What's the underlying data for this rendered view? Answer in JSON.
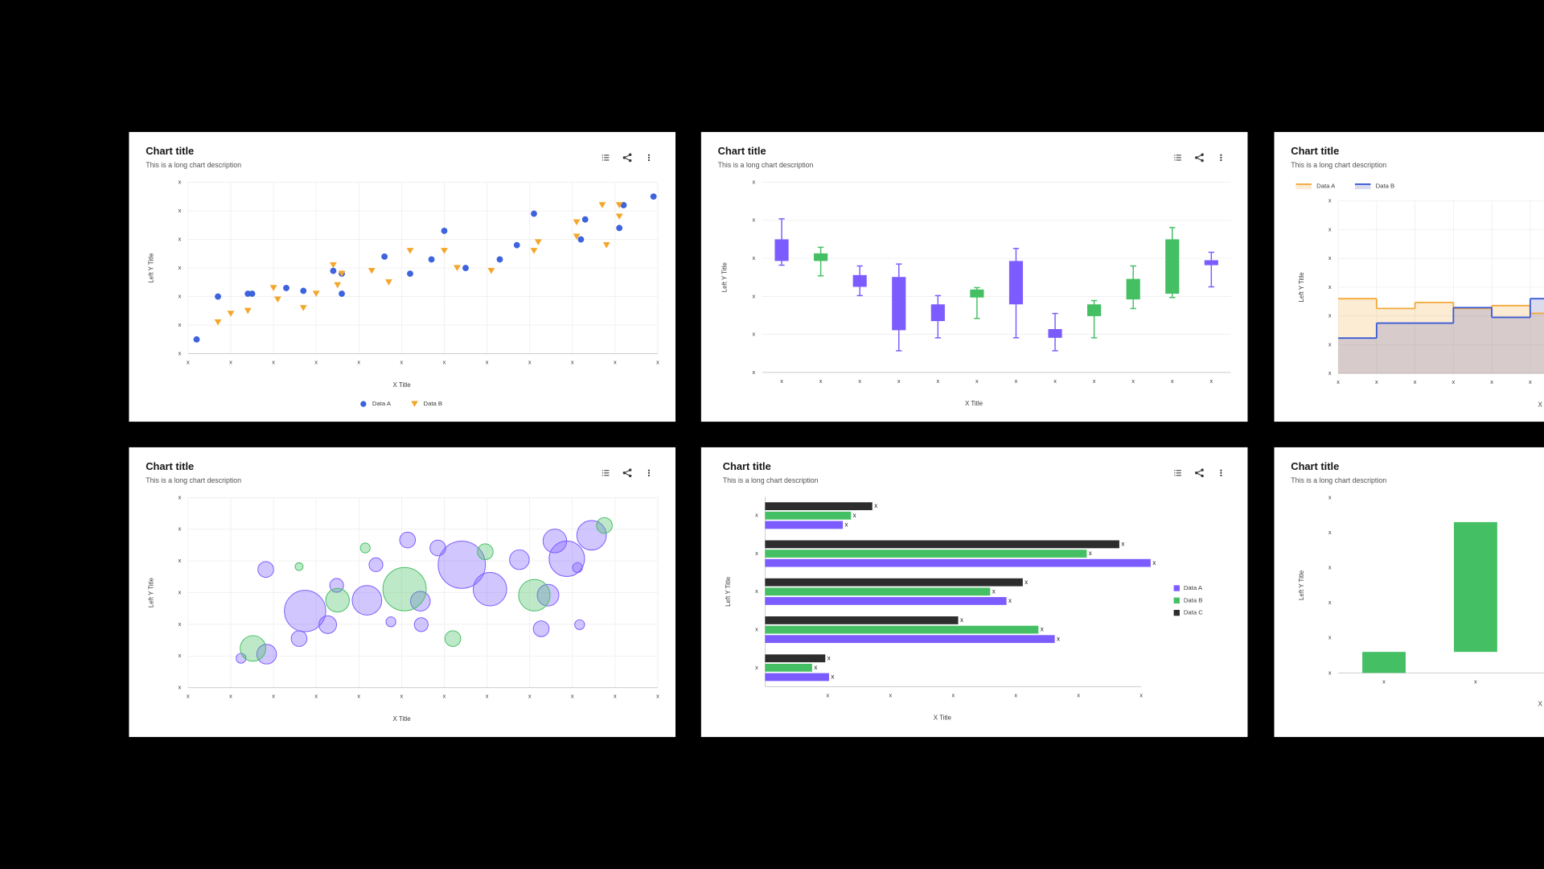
{
  "chart_data": [
    {
      "type": "scatter",
      "title": "Chart title",
      "subtitle": "This is a long chart description",
      "x_title": "X Title",
      "y_title": "Left Y Title",
      "xlim": [
        0,
        11
      ],
      "ylim": [
        0,
        6
      ],
      "xticks": [
        {
          "value": 0,
          "label": "x"
        },
        {
          "value": 1,
          "label": "x"
        },
        {
          "value": 2,
          "label": "x"
        },
        {
          "value": 3,
          "label": "x"
        },
        {
          "value": 4,
          "label": "x"
        },
        {
          "value": 5,
          "label": "x"
        },
        {
          "value": 6,
          "label": "x"
        },
        {
          "value": 7,
          "label": "x"
        },
        {
          "value": 8,
          "label": "x"
        },
        {
          "value": 9,
          "label": "x"
        },
        {
          "value": 10,
          "label": "x"
        },
        {
          "value": 11,
          "label": "x"
        }
      ],
      "yticks": [
        {
          "value": 0,
          "label": "x"
        },
        {
          "value": 1,
          "label": "x"
        },
        {
          "value": 2,
          "label": "x"
        },
        {
          "value": 3,
          "label": "x"
        },
        {
          "value": 4,
          "label": "x"
        },
        {
          "value": 5,
          "label": "x"
        },
        {
          "value": 6,
          "label": "x"
        }
      ],
      "grid": true,
      "legend": "bottom",
      "series": [
        {
          "name": "Data A",
          "color": "#3d63dd",
          "marker": "circle",
          "x": [
            0.2,
            0.7,
            1.4,
            1.5,
            2.3,
            2.7,
            3.4,
            3.6,
            3.6,
            4.6,
            5.2,
            5.7,
            6.0,
            6.5,
            7.3,
            7.7,
            8.1,
            9.2,
            9.3,
            10.1,
            10.2,
            10.9
          ],
          "values": [
            0.5,
            2.0,
            2.1,
            2.1,
            2.3,
            2.2,
            2.9,
            2.8,
            2.1,
            3.4,
            2.8,
            3.3,
            4.3,
            3.0,
            3.3,
            3.8,
            4.9,
            4.0,
            4.7,
            4.4,
            5.2,
            5.5
          ]
        },
        {
          "name": "Data B",
          "color": "#f4a62a",
          "marker": "triangle-down",
          "x": [
            0.7,
            1.0,
            1.4,
            2.0,
            2.1,
            2.7,
            3.0,
            3.4,
            3.5,
            3.6,
            4.3,
            4.7,
            5.2,
            6.0,
            6.3,
            7.1,
            8.1,
            8.2,
            9.1,
            9.1,
            9.7,
            9.8,
            10.1,
            10.1
          ],
          "values": [
            1.1,
            1.4,
            1.5,
            2.3,
            1.9,
            1.6,
            2.1,
            3.1,
            2.4,
            2.8,
            2.9,
            2.5,
            3.6,
            3.6,
            3.0,
            2.9,
            3.6,
            3.9,
            4.1,
            4.6,
            5.2,
            3.8,
            4.8,
            5.2
          ]
        }
      ]
    },
    {
      "type": "box",
      "title": "Chart title",
      "subtitle": "This is a long chart description",
      "x_title": "X Title",
      "y_title": "Left Y Title",
      "categories": [
        "x",
        "x",
        "x",
        "x",
        "x",
        "x",
        "x",
        "x",
        "x",
        "x",
        "x",
        "x"
      ],
      "ylim": [
        0,
        5
      ],
      "yticks": [
        {
          "value": 0,
          "label": "x"
        },
        {
          "value": 1,
          "label": "x"
        },
        {
          "value": 2,
          "label": "x"
        },
        {
          "value": 3,
          "label": "x"
        },
        {
          "value": 4,
          "label": "x"
        },
        {
          "value": 5,
          "label": "x"
        }
      ],
      "grid": true,
      "low": [
        2.82,
        2.54,
        2.02,
        0.57,
        0.91,
        1.42,
        0.91,
        0.57,
        0.91,
        1.68,
        1.97,
        2.25
      ],
      "q1": [
        2.93,
        2.93,
        2.25,
        1.11,
        1.35,
        1.97,
        1.79,
        0.91,
        1.48,
        1.92,
        2.07,
        2.82
      ],
      "q3": [
        3.5,
        3.13,
        2.56,
        2.51,
        1.79,
        2.18,
        2.93,
        1.14,
        1.79,
        2.46,
        3.5,
        2.95
      ],
      "high": [
        4.04,
        3.29,
        2.8,
        2.85,
        2.02,
        2.23,
        3.26,
        1.55,
        1.89,
        2.8,
        3.81,
        3.16
      ],
      "colors": [
        "#7d5cff",
        "#45bf63",
        "#7d5cff",
        "#7d5cff",
        "#7d5cff",
        "#45bf63",
        "#7d5cff",
        "#7d5cff",
        "#45bf63",
        "#45bf63",
        "#45bf63",
        "#7d5cff"
      ]
    },
    {
      "type": "step",
      "title": "Chart title",
      "subtitle": "This is a long chart description",
      "x_title": "X Title",
      "y_title": "Left Y Title",
      "xlim": [
        0,
        11
      ],
      "ylim": [
        0,
        6
      ],
      "xticks": [
        {
          "value": 0,
          "label": "x"
        },
        {
          "value": 1,
          "label": "x"
        },
        {
          "value": 2,
          "label": "x"
        },
        {
          "value": 3,
          "label": "x"
        },
        {
          "value": 4,
          "label": "x"
        },
        {
          "value": 5,
          "label": "x"
        }
      ],
      "yticks": [
        {
          "value": 0,
          "label": "x"
        },
        {
          "value": 1,
          "label": "x"
        },
        {
          "value": 2,
          "label": "x"
        },
        {
          "value": 3,
          "label": "x"
        },
        {
          "value": 4,
          "label": "x"
        },
        {
          "value": 5,
          "label": "x"
        },
        {
          "value": 6,
          "label": "x"
        }
      ],
      "grid": true,
      "legend": "top-left",
      "series": [
        {
          "name": "Data A",
          "color": "#f2a93b",
          "x": [
            0,
            1,
            2,
            3,
            4,
            5
          ],
          "values": [
            2.6,
            2.26,
            2.47,
            2.26,
            2.36,
            2.09
          ]
        },
        {
          "name": "Data B",
          "color": "#3b5bd6",
          "x": [
            0,
            1,
            2,
            3,
            4,
            5
          ],
          "values": [
            1.23,
            1.75,
            1.75,
            2.29,
            1.95,
            2.6
          ]
        }
      ]
    },
    {
      "type": "bubble",
      "title": "Chart title",
      "subtitle": "This is a long chart description",
      "x_title": "X Title",
      "y_title": "Left Y Title",
      "xlim": [
        0,
        11
      ],
      "ylim": [
        0,
        6
      ],
      "xticks": [
        {
          "value": 0,
          "label": "x"
        },
        {
          "value": 1,
          "label": "x"
        },
        {
          "value": 2,
          "label": "x"
        },
        {
          "value": 3,
          "label": "x"
        },
        {
          "value": 4,
          "label": "x"
        },
        {
          "value": 5,
          "label": "x"
        },
        {
          "value": 6,
          "label": "x"
        },
        {
          "value": 7,
          "label": "x"
        },
        {
          "value": 8,
          "label": "x"
        },
        {
          "value": 9,
          "label": "x"
        },
        {
          "value": 10,
          "label": "x"
        },
        {
          "value": 11,
          "label": "x"
        }
      ],
      "yticks": [
        {
          "value": 0,
          "label": "x"
        },
        {
          "value": 1,
          "label": "x"
        },
        {
          "value": 2,
          "label": "x"
        },
        {
          "value": 3,
          "label": "x"
        },
        {
          "value": 4,
          "label": "x"
        },
        {
          "value": 5,
          "label": "x"
        },
        {
          "value": 6,
          "label": "x"
        }
      ],
      "grid": true,
      "series": [
        {
          "color": "#7d5cff",
          "x": [
            1.24,
            1.84,
            1.82,
            2.6,
            2.74,
            3.27,
            3.48,
            4.19,
            4.4,
            4.75,
            5.14,
            5.44,
            5.46,
            5.85,
            6.41,
            7.07,
            7.76,
            8.27,
            8.43,
            8.59,
            8.87,
            9.12,
            9.17,
            9.45
          ],
          "values": [
            0.93,
            1.06,
            3.73,
            1.55,
            2.42,
            1.99,
            3.23,
            2.76,
            3.88,
            2.08,
            4.66,
            2.73,
            1.99,
            4.41,
            3.88,
            3.11,
            4.04,
            1.86,
            2.92,
            4.63,
            4.07,
            3.79,
            1.99,
            4.81
          ],
          "sizes": [
            5,
            10,
            8,
            8,
            21,
            9,
            7,
            15,
            7,
            5,
            8,
            10,
            7,
            8,
            24,
            17,
            10,
            8,
            11,
            12,
            18,
            5,
            5,
            15
          ]
        },
        {
          "color": "#45bf63",
          "x": [
            1.52,
            2.6,
            3.5,
            4.15,
            5.07,
            6.2,
            6.96,
            8.11,
            9.75
          ],
          "values": [
            1.24,
            3.82,
            2.76,
            4.41,
            3.11,
            1.55,
            4.29,
            2.92,
            5.12
          ],
          "sizes": [
            13,
            4,
            12,
            5,
            22,
            8,
            8,
            16,
            8
          ]
        }
      ]
    },
    {
      "type": "hbar",
      "title": "Chart title",
      "subtitle": "This is a long chart description",
      "x_title": "X Title",
      "y_title": "Left Y Title",
      "categories": [
        "x",
        "x",
        "x",
        "x",
        "x"
      ],
      "xlim": [
        0,
        6
      ],
      "xticks": [
        {
          "value": 1,
          "label": "x"
        },
        {
          "value": 2,
          "label": "x"
        },
        {
          "value": 3,
          "label": "x"
        },
        {
          "value": 4,
          "label": "x"
        },
        {
          "value": 5,
          "label": "x"
        },
        {
          "value": 6,
          "label": "x"
        }
      ],
      "grid": false,
      "legend": "right",
      "series": [
        {
          "name": "Data A",
          "color": "#7c5cff",
          "values": [
            1.24,
            6.15,
            3.85,
            4.62,
            1.02
          ],
          "value_labels": [
            "x",
            "x",
            "x",
            "x",
            "x"
          ]
        },
        {
          "name": "Data B",
          "color": "#45bf63",
          "values": [
            1.37,
            5.13,
            3.59,
            4.36,
            0.75
          ],
          "value_labels": [
            "x",
            "x",
            "x",
            "x",
            "x"
          ]
        },
        {
          "name": "Data C",
          "color": "#2d2d2d",
          "values": [
            1.71,
            5.65,
            4.11,
            3.08,
            0.96
          ],
          "value_labels": [
            "x",
            "x",
            "x",
            "x",
            "x"
          ]
        }
      ]
    },
    {
      "type": "waterfall",
      "title": "Chart title",
      "subtitle": "This is a long chart description",
      "x_title": "X Title",
      "y_title": "Left Y Title",
      "categories": [
        "x",
        "x"
      ],
      "values": [
        0.6,
        3.7
      ],
      "color": "#45bf63",
      "ylim": [
        0,
        5
      ],
      "yticks": [
        {
          "value": 0,
          "label": "x"
        },
        {
          "value": 1,
          "label": "x"
        },
        {
          "value": 2,
          "label": "x"
        },
        {
          "value": 3,
          "label": "x"
        },
        {
          "value": 4,
          "label": "x"
        },
        {
          "value": 5,
          "label": "x"
        }
      ],
      "grid": false
    }
  ]
}
